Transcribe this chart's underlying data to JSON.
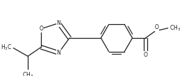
{
  "bg_color": "#ffffff",
  "line_color": "#1a1a1a",
  "line_width": 0.9,
  "font_size": 5.5,
  "fig_width": 2.62,
  "fig_height": 1.1,
  "dpi": 100,
  "xlim": [
    0.0,
    4.4
  ],
  "ylim": [
    0.2,
    2.0
  ]
}
